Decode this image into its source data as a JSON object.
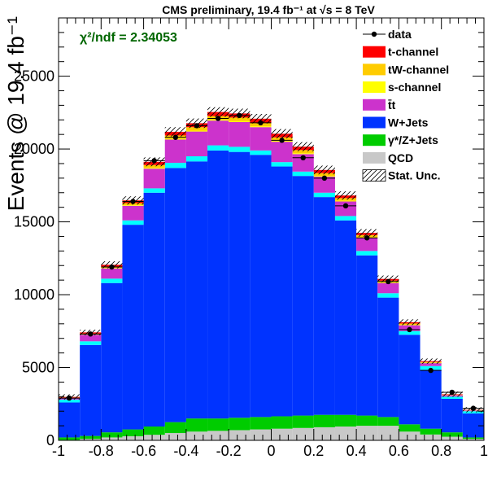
{
  "chart_data": {
    "type": "bar",
    "title": "CMS preliminary, 19.4 fb⁻¹ at √s = 8 TeV",
    "annotation": "χ²/ndf = 2.34053",
    "ylabel": "Events @ 19.4 fb⁻¹",
    "xlabel": "",
    "xlim": [
      -1,
      1
    ],
    "ylim": [
      0,
      29000
    ],
    "x_ticks": [
      "-1",
      "-0.8",
      "-0.6",
      "-0.4",
      "-0.2",
      "0",
      "0.2",
      "0.4",
      "0.6",
      "0.8",
      "1"
    ],
    "y_ticks": [
      "0",
      "5000",
      "10000",
      "15000",
      "20000",
      "25000"
    ],
    "stacked": true,
    "bin_edges": [
      -1.0,
      -0.9,
      -0.8,
      -0.7,
      -0.6,
      -0.5,
      -0.4,
      -0.3,
      -0.2,
      -0.1,
      0.0,
      0.1,
      0.2,
      0.3,
      0.4,
      0.5,
      0.6,
      0.7,
      0.8,
      0.9,
      1.0
    ],
    "series": [
      {
        "name": "QCD",
        "color": "#c8c8c8",
        "values": [
          30,
          100,
          200,
          280,
          380,
          500,
          600,
          650,
          700,
          750,
          800,
          850,
          900,
          950,
          1000,
          1000,
          600,
          400,
          250,
          100
        ]
      },
      {
        "name": "γ*/Z+Jets",
        "color": "#00cc00",
        "values": [
          170,
          200,
          350,
          470,
          570,
          750,
          900,
          850,
          850,
          850,
          850,
          850,
          850,
          800,
          700,
          600,
          500,
          400,
          300,
          100
        ]
      },
      {
        "name": "W+Jets",
        "color": "#0033ff",
        "values": [
          2400,
          6250,
          10250,
          14050,
          16050,
          17450,
          17650,
          18400,
          18250,
          18000,
          17150,
          16450,
          14950,
          13350,
          11000,
          8200,
          6150,
          4050,
          2300,
          1650
        ]
      },
      {
        "name": "cyan",
        "color": "#00ffff",
        "values": [
          200,
          250,
          300,
          300,
          300,
          350,
          350,
          350,
          350,
          300,
          300,
          300,
          300,
          300,
          300,
          300,
          250,
          250,
          150,
          150
        ]
      },
      {
        "name": "t̄t",
        "color": "#cc33cc",
        "values": [
          100,
          450,
          700,
          1000,
          1350,
          1600,
          1700,
          1700,
          1700,
          1600,
          1400,
          1200,
          1100,
          1000,
          900,
          700,
          400,
          200,
          100,
          50
        ]
      },
      {
        "name": "s-channel",
        "color": "#ffff00",
        "values": [
          10,
          20,
          30,
          40,
          50,
          60,
          60,
          60,
          60,
          60,
          60,
          60,
          50,
          50,
          40,
          40,
          30,
          20,
          10,
          10
        ]
      },
      {
        "name": "tW-channel",
        "color": "#ffcc00",
        "values": [
          30,
          60,
          100,
          150,
          200,
          220,
          240,
          250,
          250,
          250,
          240,
          220,
          200,
          180,
          150,
          120,
          90,
          60,
          30,
          20
        ]
      },
      {
        "name": "t-channel",
        "color": "#ff0000",
        "values": [
          40,
          80,
          120,
          180,
          220,
          250,
          270,
          280,
          280,
          270,
          250,
          230,
          210,
          180,
          150,
          120,
          90,
          60,
          30,
          20
        ]
      }
    ],
    "data_points": {
      "name": "data",
      "x": [
        -0.95,
        -0.85,
        -0.75,
        -0.65,
        -0.55,
        -0.45,
        -0.35,
        -0.25,
        -0.15,
        -0.05,
        0.05,
        0.15,
        0.25,
        0.35,
        0.45,
        0.55,
        0.65,
        0.75,
        0.85,
        0.95
      ],
      "y": [
        2900,
        7300,
        11900,
        16400,
        19200,
        20800,
        21600,
        22100,
        22300,
        21800,
        20600,
        19400,
        18000,
        16100,
        13900,
        10900,
        7600,
        4800,
        3300,
        2200
      ],
      "yerr": [
        55,
        85,
        110,
        128,
        139,
        144,
        147,
        149,
        149,
        148,
        144,
        139,
        134,
        127,
        118,
        104,
        87,
        69,
        57,
        47
      ]
    },
    "legend": {
      "position": "top-right",
      "entries": [
        {
          "label": "data",
          "kind": "marker",
          "color": "#000000"
        },
        {
          "label": "t-channel",
          "kind": "box",
          "color": "#ff0000"
        },
        {
          "label": "tW-channel",
          "kind": "box",
          "color": "#ffcc00"
        },
        {
          "label": "s-channel",
          "kind": "box",
          "color": "#ffff00"
        },
        {
          "label": "t̄t",
          "kind": "box",
          "color": "#cc33cc"
        },
        {
          "label": "W+Jets",
          "kind": "box",
          "color": "#0033ff"
        },
        {
          "label": "γ*/Z+Jets",
          "kind": "box",
          "color": "#00cc00"
        },
        {
          "label": "QCD",
          "kind": "box",
          "color": "#c8c8c8"
        },
        {
          "label": "Stat. Unc.",
          "kind": "hatch",
          "color": "#000000"
        }
      ]
    },
    "colors": {
      "annotation": "#006600"
    }
  }
}
